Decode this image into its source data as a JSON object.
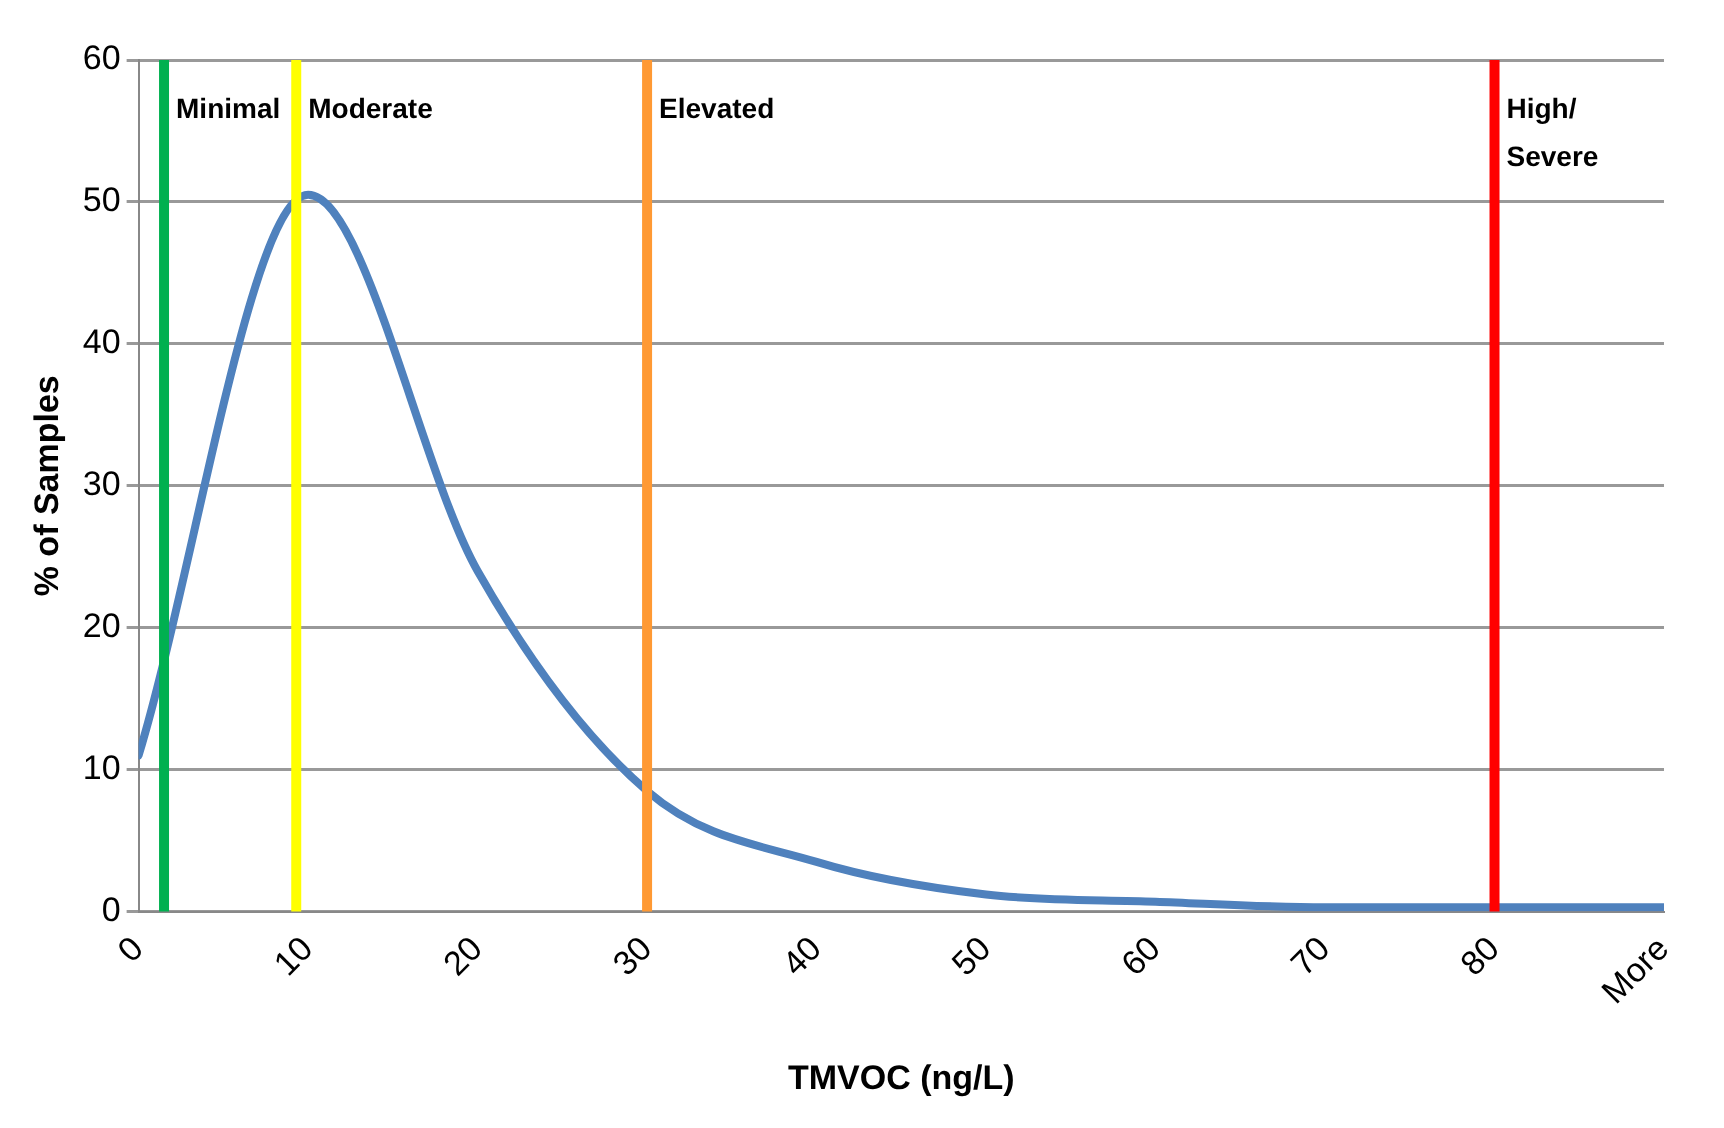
{
  "chart_data": {
    "type": "line",
    "xlabel": "TMVOC (ng/L)",
    "ylabel": "% of Samples",
    "x": [
      0,
      10,
      20,
      30,
      40,
      50,
      60,
      70,
      80,
      90
    ],
    "series": [
      {
        "color": "#4f81bd",
        "values": [
          11,
          50.5,
          24,
          8.5,
          3.5,
          1.2,
          0.7,
          0.3,
          0.3,
          0.3
        ]
      }
    ],
    "xlim": [
      0,
      90
    ],
    "xticks": [
      0,
      10,
      20,
      30,
      40,
      50,
      60,
      70,
      80,
      {
        "value": 90,
        "label": "More"
      }
    ],
    "ylim": [
      0,
      60
    ],
    "yticks": [
      0,
      10,
      20,
      30,
      40,
      50,
      60
    ],
    "grid": "y",
    "legend": false,
    "marker": "none",
    "line_style": "solid",
    "ref_lines": [
      {
        "axis": "x",
        "value": 1.5,
        "label": "Minimal",
        "color": "#00b050"
      },
      {
        "axis": "x",
        "value": 9.3,
        "label": "Moderate",
        "color": "#ffff00"
      },
      {
        "axis": "x",
        "value": 30,
        "label": "Elevated",
        "color": "#ff9933"
      },
      {
        "axis": "x",
        "value": 80,
        "label": "High/ Severe",
        "color": "#ff0000"
      }
    ]
  }
}
